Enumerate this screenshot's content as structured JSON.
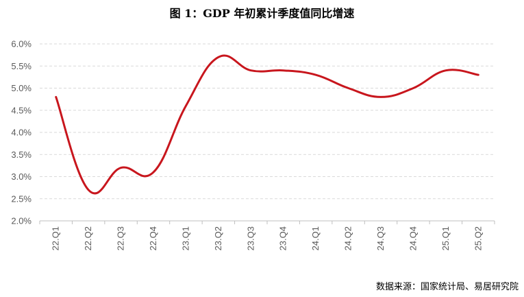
{
  "chart_data": {
    "type": "line",
    "title": "图 1：GDP 年初累计季度值同比增速",
    "source": "数据来源：国家统计局、易居研究院",
    "categories": [
      "22.Q1",
      "22.Q2",
      "22.Q3",
      "22.Q4",
      "23.Q1",
      "23.Q2",
      "23.Q3",
      "23.Q4",
      "24.Q1",
      "24.Q2",
      "24.Q3",
      "24.Q4",
      "25.Q1",
      "25.Q2"
    ],
    "series": [
      {
        "values": [
          4.8,
          2.7,
          3.2,
          3.1,
          4.6,
          5.7,
          5.4,
          5.4,
          5.3,
          5.0,
          4.8,
          5.0,
          5.4,
          5.3
        ]
      }
    ],
    "y_ticks": [
      "2.0%",
      "2.5%",
      "3.0%",
      "3.5%",
      "4.0%",
      "4.5%",
      "5.0%",
      "5.5%",
      "6.0%"
    ],
    "ylim": [
      2.0,
      6.0
    ],
    "y_format": "percent",
    "grid": "horizontal-dashed",
    "legend": "none",
    "colors": {
      "line": "#c8161d",
      "grid": "#d9d9d9",
      "axis": "#bfbfbf",
      "tick_text": "#595959"
    }
  }
}
